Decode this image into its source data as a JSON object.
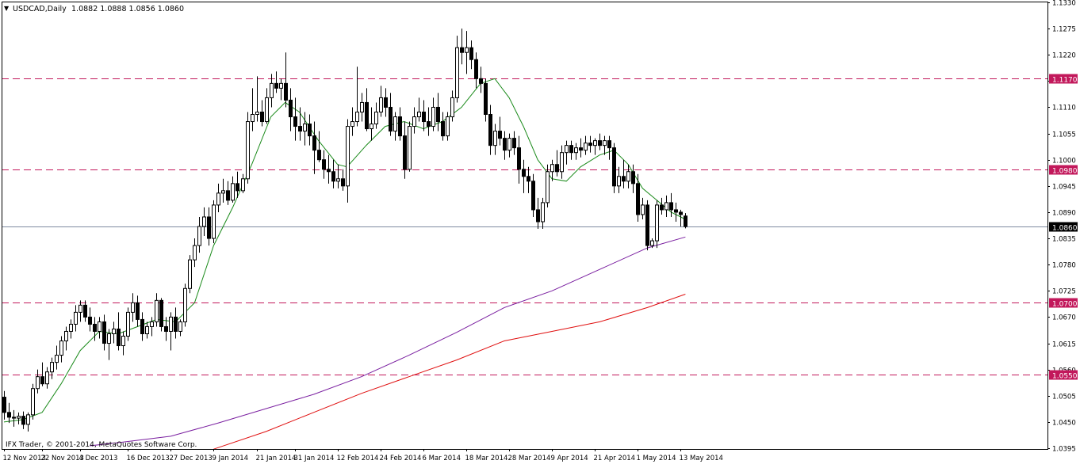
{
  "header": {
    "symbol_label": "USDCAD,Daily",
    "ohlc_label": "1.0882 1.0888 1.0856 1.0860",
    "dropdown_glyph": "▼"
  },
  "copyright": "IFX Trader, © 2001-2014, MetaQuotes Software Corp.",
  "colors": {
    "background": "#ffffff",
    "frame": "#000000",
    "candle": "#000000",
    "bull_fill": "#ffffff",
    "bear_fill": "#000000",
    "sma_short": "#1a8a1a",
    "sma_mid": "#7a1fa0",
    "sma_long": "#e01010",
    "level_line": "#c2185b",
    "level_tag": "#c2185b",
    "price_line": "#7f8aa0",
    "price_tag": "#000000"
  },
  "chart_data": {
    "type": "candlestick",
    "symbol": "USDCAD",
    "timeframe": "Daily",
    "ylim": [
      1.0395,
      1.133
    ],
    "y_ticks": [
      "1.1330",
      "1.1275",
      "1.1220",
      "1.1165",
      "1.1110",
      "1.1055",
      "1.1000",
      "1.0945",
      "1.0890",
      "1.0835",
      "1.0780",
      "1.0725",
      "1.0670",
      "1.0615",
      "1.0560",
      "1.0505",
      "1.0450",
      "1.0395"
    ],
    "x_labels": [
      {
        "bar": 0,
        "label": "12 Nov 2013"
      },
      {
        "bar": 8,
        "label": "22 Nov 2013"
      },
      {
        "bar": 16,
        "label": "4 Dec 2013"
      },
      {
        "bar": 26,
        "label": "16 Dec 2013"
      },
      {
        "bar": 35,
        "label": "27 Dec 2013"
      },
      {
        "bar": 44,
        "label": "9 Jan 2014"
      },
      {
        "bar": 53,
        "label": "21 Jan 2014"
      },
      {
        "bar": 61,
        "label": "31 Jan 2014"
      },
      {
        "bar": 70,
        "label": "12 Feb 2014"
      },
      {
        "bar": 79,
        "label": "24 Feb 2014"
      },
      {
        "bar": 88,
        "label": "6 Mar 2014"
      },
      {
        "bar": 97,
        "label": "18 Mar 2014"
      },
      {
        "bar": 106,
        "label": "28 Mar 2014"
      },
      {
        "bar": 115,
        "label": "9 Apr 2014"
      },
      {
        "bar": 124,
        "label": "21 Apr 2014"
      },
      {
        "bar": 133,
        "label": "1 May 2014"
      },
      {
        "bar": 142,
        "label": "13 May 2014"
      }
    ],
    "current_price": {
      "value": 1.086,
      "label": "1.0860"
    },
    "levels": [
      {
        "value": 1.117,
        "label": "1.1170"
      },
      {
        "value": 1.098,
        "label": "1.0980"
      },
      {
        "value": 1.07,
        "label": "1.0700"
      },
      {
        "value": 1.055,
        "label": "1.0550"
      }
    ],
    "candles": [
      [
        1.0502,
        1.0515,
        1.0455,
        1.047
      ],
      [
        1.047,
        1.049,
        1.0448,
        1.046
      ],
      [
        1.046,
        1.0475,
        1.044,
        1.0458
      ],
      [
        1.0458,
        1.047,
        1.0445,
        1.0462
      ],
      [
        1.0462,
        1.0472,
        1.0435,
        1.0445
      ],
      [
        1.0445,
        1.047,
        1.043,
        1.0465
      ],
      [
        1.0465,
        1.053,
        1.0455,
        1.052
      ],
      [
        1.052,
        1.056,
        1.051,
        1.0545
      ],
      [
        1.0545,
        1.0575,
        1.0525,
        1.053
      ],
      [
        1.053,
        1.0565,
        1.052,
        1.0555
      ],
      [
        1.0555,
        1.0585,
        1.054,
        1.0575
      ],
      [
        1.0575,
        1.061,
        1.056,
        1.059
      ],
      [
        1.059,
        1.063,
        1.0575,
        1.062
      ],
      [
        1.062,
        1.065,
        1.06,
        1.064
      ],
      [
        1.064,
        1.0665,
        1.0625,
        1.0655
      ],
      [
        1.0655,
        1.0695,
        1.064,
        1.068
      ],
      [
        1.068,
        1.0705,
        1.066,
        1.0695
      ],
      [
        1.0695,
        1.0705,
        1.066,
        1.067
      ],
      [
        1.067,
        1.069,
        1.064,
        1.0655
      ],
      [
        1.0655,
        1.067,
        1.062,
        1.064
      ],
      [
        1.064,
        1.067,
        1.0625,
        1.066
      ],
      [
        1.066,
        1.0675,
        1.06,
        1.0615
      ],
      [
        1.0615,
        1.0645,
        1.058,
        1.0635
      ],
      [
        1.0635,
        1.066,
        1.0615,
        1.0645
      ],
      [
        1.0645,
        1.068,
        1.06,
        1.061
      ],
      [
        1.061,
        1.064,
        1.059,
        1.063
      ],
      [
        1.063,
        1.069,
        1.062,
        1.068
      ],
      [
        1.068,
        1.072,
        1.066,
        1.07
      ],
      [
        1.07,
        1.0715,
        1.065,
        1.0665
      ],
      [
        1.0665,
        1.068,
        1.062,
        1.0635
      ],
      [
        1.0635,
        1.066,
        1.0625,
        1.065
      ],
      [
        1.065,
        1.067,
        1.063,
        1.066
      ],
      [
        1.066,
        1.072,
        1.065,
        1.0705
      ],
      [
        1.0705,
        1.071,
        1.064,
        1.065
      ],
      [
        1.065,
        1.067,
        1.062,
        1.064
      ],
      [
        1.064,
        1.068,
        1.06,
        1.067
      ],
      [
        1.067,
        1.069,
        1.0625,
        1.064
      ],
      [
        1.064,
        1.0665,
        1.063,
        1.066
      ],
      [
        1.066,
        1.074,
        1.065,
        1.073
      ],
      [
        1.073,
        1.08,
        1.072,
        1.079
      ],
      [
        1.079,
        1.0835,
        1.0775,
        1.082
      ],
      [
        1.082,
        1.088,
        1.0805,
        1.086
      ],
      [
        1.086,
        1.09,
        1.084,
        1.088
      ],
      [
        1.088,
        1.09,
        1.082,
        1.0835
      ],
      [
        1.0835,
        1.0915,
        1.0825,
        1.0905
      ],
      [
        1.0905,
        1.095,
        1.089,
        1.093
      ],
      [
        1.093,
        1.096,
        1.091,
        1.0935
      ],
      [
        1.0935,
        1.0955,
        1.0905,
        1.0915
      ],
      [
        1.0915,
        1.0965,
        1.091,
        1.095
      ],
      [
        1.095,
        1.0975,
        1.092,
        1.0935
      ],
      [
        1.0935,
        1.097,
        1.093,
        1.096
      ],
      [
        1.096,
        1.11,
        1.095,
        1.108
      ],
      [
        1.108,
        1.115,
        1.106,
        1.1095
      ],
      [
        1.1095,
        1.1175,
        1.108,
        1.11
      ],
      [
        1.11,
        1.1125,
        1.107,
        1.108
      ],
      [
        1.108,
        1.115,
        1.1075,
        1.113
      ],
      [
        1.113,
        1.118,
        1.111,
        1.116
      ],
      [
        1.116,
        1.1185,
        1.114,
        1.115
      ],
      [
        1.115,
        1.117,
        1.1125,
        1.116
      ],
      [
        1.116,
        1.1225,
        1.111,
        1.1125
      ],
      [
        1.1125,
        1.115,
        1.106,
        1.109
      ],
      [
        1.109,
        1.113,
        1.104,
        1.107
      ],
      [
        1.107,
        1.111,
        1.104,
        1.106
      ],
      [
        1.106,
        1.11,
        1.103,
        1.1075
      ],
      [
        1.1075,
        1.1095,
        1.103,
        1.105
      ],
      [
        1.105,
        1.108,
        1.097,
        1.102
      ],
      [
        1.102,
        1.106,
        1.0995,
        1.1
      ],
      [
        1.1,
        1.102,
        1.096,
        1.098
      ],
      [
        1.098,
        1.101,
        1.095,
        1.0975
      ],
      [
        1.0975,
        1.1,
        1.094,
        1.0955
      ],
      [
        1.0955,
        1.099,
        1.094,
        1.096
      ],
      [
        1.096,
        1.098,
        1.0935,
        1.0945
      ],
      [
        1.0945,
        1.1085,
        1.091,
        1.107
      ],
      [
        1.107,
        1.111,
        1.105,
        1.108
      ],
      [
        1.108,
        1.1195,
        1.107,
        1.11
      ],
      [
        1.11,
        1.114,
        1.108,
        1.112
      ],
      [
        1.112,
        1.115,
        1.106,
        1.1065
      ],
      [
        1.1065,
        1.111,
        1.104,
        1.1075
      ],
      [
        1.1075,
        1.112,
        1.1065,
        1.11
      ],
      [
        1.11,
        1.1155,
        1.109,
        1.113
      ],
      [
        1.113,
        1.115,
        1.109,
        1.111
      ],
      [
        1.111,
        1.114,
        1.105,
        1.106
      ],
      [
        1.106,
        1.11,
        1.104,
        1.109
      ],
      [
        1.109,
        1.111,
        1.104,
        1.105
      ],
      [
        1.105,
        1.108,
        1.096,
        1.098
      ],
      [
        1.098,
        1.108,
        1.0975,
        1.107
      ],
      [
        1.107,
        1.111,
        1.1055,
        1.109
      ],
      [
        1.109,
        1.113,
        1.108,
        1.11
      ],
      [
        1.11,
        1.1125,
        1.106,
        1.108
      ],
      [
        1.108,
        1.111,
        1.105,
        1.107
      ],
      [
        1.107,
        1.113,
        1.106,
        1.111
      ],
      [
        1.111,
        1.114,
        1.106,
        1.108
      ],
      [
        1.108,
        1.11,
        1.104,
        1.105
      ],
      [
        1.105,
        1.11,
        1.104,
        1.109
      ],
      [
        1.109,
        1.1145,
        1.108,
        1.113
      ],
      [
        1.113,
        1.126,
        1.112,
        1.1235
      ],
      [
        1.1235,
        1.1275,
        1.12,
        1.1225
      ],
      [
        1.1225,
        1.127,
        1.118,
        1.1235
      ],
      [
        1.1235,
        1.125,
        1.119,
        1.121
      ],
      [
        1.121,
        1.1225,
        1.115,
        1.117
      ],
      [
        1.117,
        1.1195,
        1.114,
        1.116
      ],
      [
        1.116,
        1.117,
        1.108,
        1.1095
      ],
      [
        1.1095,
        1.1115,
        1.101,
        1.103
      ],
      [
        1.103,
        1.1075,
        1.101,
        1.106
      ],
      [
        1.106,
        1.109,
        1.103,
        1.1045
      ],
      [
        1.1045,
        1.106,
        1.1,
        1.102
      ],
      [
        1.102,
        1.1055,
        1.1005,
        1.1045
      ],
      [
        1.1045,
        1.106,
        1.101,
        1.1025
      ],
      [
        1.1025,
        1.105,
        1.095,
        1.098
      ],
      [
        1.098,
        1.1,
        1.093,
        1.0965
      ],
      [
        1.0965,
        1.0985,
        1.093,
        1.0955
      ],
      [
        1.0955,
        1.097,
        1.088,
        1.0895
      ],
      [
        1.0895,
        1.092,
        1.0855,
        1.087
      ],
      [
        1.087,
        1.092,
        1.0855,
        1.091
      ],
      [
        1.091,
        1.099,
        1.09,
        1.0975
      ],
      [
        1.0975,
        1.1,
        1.0955,
        1.099
      ],
      [
        1.099,
        1.102,
        1.0965,
        1.0975
      ],
      [
        1.0975,
        1.103,
        1.096,
        1.1015
      ],
      [
        1.1015,
        1.104,
        1.099,
        1.103
      ],
      [
        1.103,
        1.104,
        1.1,
        1.1015
      ],
      [
        1.1015,
        1.1035,
        1.1,
        1.1025
      ],
      [
        1.1025,
        1.1045,
        1.1005,
        1.102
      ],
      [
        1.102,
        1.105,
        1.101,
        1.1035
      ],
      [
        1.1035,
        1.105,
        1.1015,
        1.103
      ],
      [
        1.103,
        1.1045,
        1.101,
        1.104
      ],
      [
        1.104,
        1.1055,
        1.102,
        1.103
      ],
      [
        1.103,
        1.105,
        1.101,
        1.104
      ],
      [
        1.104,
        1.105,
        1.1,
        1.1025
      ],
      [
        1.1025,
        1.1035,
        1.093,
        1.0945
      ],
      [
        1.0945,
        1.0985,
        1.093,
        1.0965
      ],
      [
        1.0965,
        1.1,
        1.094,
        1.0955
      ],
      [
        1.0955,
        1.099,
        1.094,
        1.0975
      ],
      [
        1.0975,
        1.099,
        1.093,
        1.095
      ],
      [
        1.095,
        1.097,
        1.087,
        1.0885
      ],
      [
        1.0885,
        1.092,
        1.0875,
        1.0905
      ],
      [
        1.0905,
        1.0915,
        1.081,
        1.082
      ],
      [
        1.082,
        1.0835,
        1.0815,
        1.083
      ],
      [
        1.083,
        1.0915,
        1.0815,
        1.0905
      ],
      [
        1.0905,
        1.092,
        1.0885,
        1.0895
      ],
      [
        1.0895,
        1.0925,
        1.088,
        1.091
      ],
      [
        1.091,
        1.093,
        1.088,
        1.0895
      ],
      [
        1.0895,
        1.091,
        1.087,
        1.089
      ],
      [
        1.089,
        1.0895,
        1.086,
        1.0885
      ],
      [
        1.0882,
        1.0888,
        1.0856,
        1.086
      ]
    ],
    "series": [
      {
        "name": "",
        "color_key": "sma_short",
        "points": [
          [
            0,
            1.045
          ],
          [
            4,
            1.0455
          ],
          [
            8,
            1.047
          ],
          [
            12,
            1.053
          ],
          [
            16,
            1.06
          ],
          [
            20,
            1.064
          ],
          [
            24,
            1.0635
          ],
          [
            28,
            1.065
          ],
          [
            32,
            1.0665
          ],
          [
            36,
            1.066
          ],
          [
            40,
            1.07
          ],
          [
            44,
            1.082
          ],
          [
            48,
            1.09
          ],
          [
            52,
            1.099
          ],
          [
            56,
            1.109
          ],
          [
            59,
            1.112
          ],
          [
            62,
            1.11
          ],
          [
            66,
            1.104
          ],
          [
            70,
            1.099
          ],
          [
            72,
            1.0985
          ],
          [
            76,
            1.103
          ],
          [
            80,
            1.107
          ],
          [
            84,
            1.108
          ],
          [
            88,
            1.1065
          ],
          [
            92,
            1.108
          ],
          [
            96,
            1.111
          ],
          [
            100,
            1.116
          ],
          [
            103,
            1.117
          ],
          [
            106,
            1.113
          ],
          [
            109,
            1.107
          ],
          [
            112,
            1.1
          ],
          [
            115,
            1.096
          ],
          [
            118,
            1.0955
          ],
          [
            121,
            1.0985
          ],
          [
            125,
            1.101
          ],
          [
            128,
            1.102
          ],
          [
            131,
            1.099
          ],
          [
            134,
            1.094
          ],
          [
            137,
            1.0915
          ],
          [
            140,
            1.089
          ],
          [
            143,
            1.0875
          ]
        ]
      },
      {
        "name": "",
        "color_key": "sma_mid",
        "points": [
          [
            18,
            1.04
          ],
          [
            25,
            1.0408
          ],
          [
            35,
            1.042
          ],
          [
            45,
            1.0448
          ],
          [
            55,
            1.0478
          ],
          [
            65,
            1.0508
          ],
          [
            75,
            1.0545
          ],
          [
            85,
            1.059
          ],
          [
            95,
            1.0638
          ],
          [
            105,
            1.069
          ],
          [
            115,
            1.0725
          ],
          [
            125,
            1.077
          ],
          [
            135,
            1.0815
          ],
          [
            143,
            1.0838
          ]
        ]
      },
      {
        "name": "",
        "color_key": "sma_long",
        "points": [
          [
            44,
            1.0393
          ],
          [
            55,
            1.043
          ],
          [
            65,
            1.047
          ],
          [
            75,
            1.051
          ],
          [
            85,
            1.0545
          ],
          [
            95,
            1.058
          ],
          [
            105,
            1.062
          ],
          [
            115,
            1.064
          ],
          [
            125,
            1.066
          ],
          [
            135,
            1.069
          ],
          [
            143,
            1.0718
          ]
        ]
      }
    ]
  }
}
